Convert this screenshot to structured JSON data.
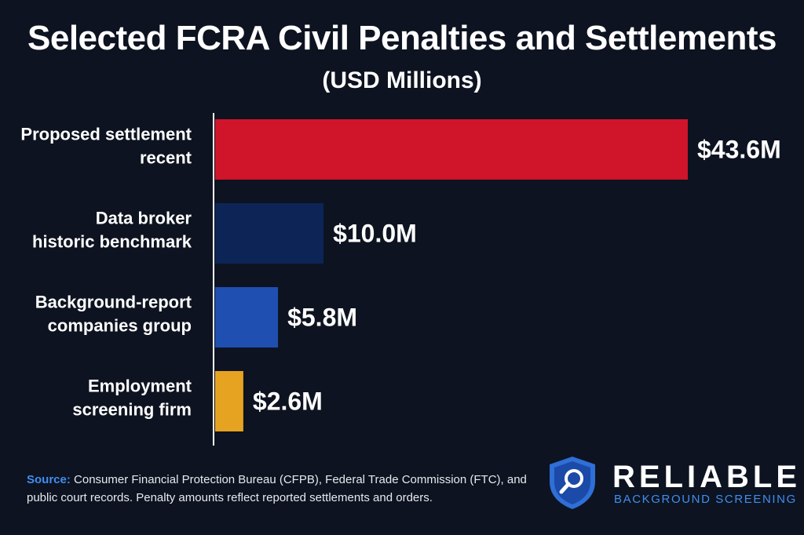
{
  "title": "Selected FCRA Civil Penalties and Settlements",
  "subtitle": "(USD Millions)",
  "chart_data": {
    "type": "bar",
    "orientation": "horizontal",
    "title": "Selected FCRA Civil Penalties and Settlements",
    "subtitle": "(USD Millions)",
    "categories": [
      [
        "Proposed settlement",
        "recent"
      ],
      [
        "Data broker",
        "historic benchmark"
      ],
      [
        "Background-report",
        "companies group"
      ],
      [
        "Employment",
        "screening firm"
      ]
    ],
    "values": [
      43.6,
      10.0,
      5.8,
      2.6
    ],
    "value_labels": [
      "$43.6M",
      "$10.0M",
      "$5.8M",
      "$2.6M"
    ],
    "colors": [
      "#d0142a",
      "#0d2556",
      "#1f4fb0",
      "#e6a321"
    ],
    "xlim": [
      0,
      43.6
    ],
    "grid": false,
    "legend": "none"
  },
  "source": {
    "key": "Source:",
    "text": "Consumer Financial Protection Bureau (CFPB), Federal Trade Commission (FTC), and public court records. Penalty amounts reflect reported settlements and orders."
  },
  "logo": {
    "icon": "magnifier-shield-icon",
    "brand": "RELIABLE",
    "tagline": "BACKGROUND SCREENING"
  }
}
